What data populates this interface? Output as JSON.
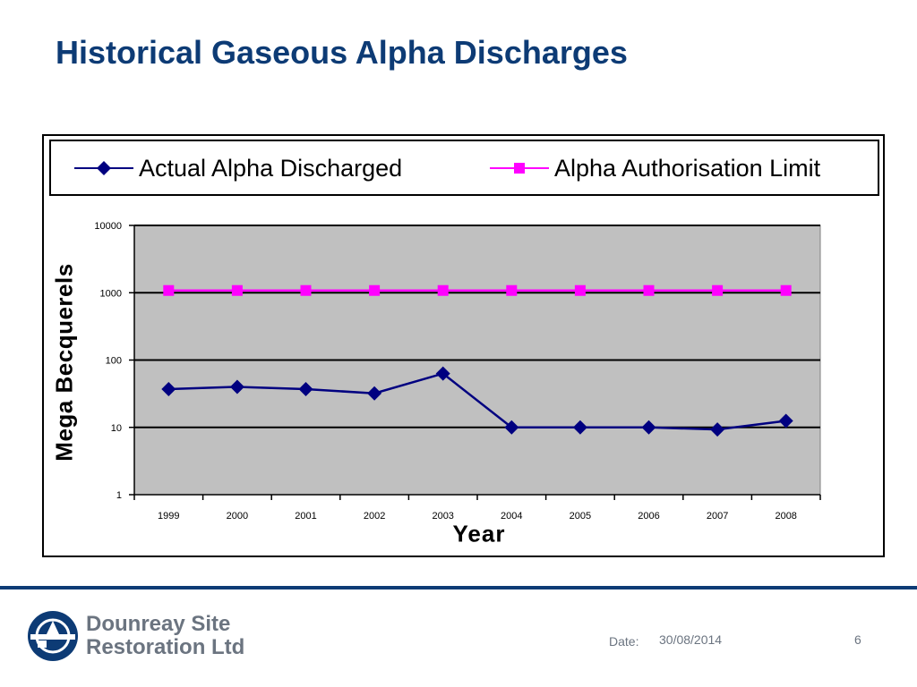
{
  "slide": {
    "title": "Historical Gaseous Alpha Discharges"
  },
  "chart_data": {
    "type": "line",
    "title": "",
    "xlabel": "Year",
    "ylabel": "Mega Becquerels",
    "y_scale": "log",
    "ylim": [
      1,
      10000
    ],
    "y_ticks": [
      1,
      10,
      100,
      1000,
      10000
    ],
    "y_tick_labels": [
      "1",
      "10",
      "100",
      "1000",
      "10000"
    ],
    "categories": [
      "1999",
      "2000",
      "2001",
      "2002",
      "2003",
      "2004",
      "2005",
      "2006",
      "2007",
      "2008"
    ],
    "grid": true,
    "plot_background": "#c0c0c0",
    "legend_position": "top",
    "series": [
      {
        "name": "Actual Alpha Discharged",
        "color": "#000080",
        "marker": "diamond",
        "values": [
          37,
          40,
          37,
          32,
          63,
          10,
          10,
          10,
          9.3,
          12.5
        ]
      },
      {
        "name": "Alpha Authorisation Limit",
        "color": "#ff00ff",
        "marker": "square",
        "values": [
          1080,
          1080,
          1080,
          1080,
          1080,
          1080,
          1080,
          1080,
          1080,
          1080
        ]
      }
    ]
  },
  "footer": {
    "logo_line1": "Dounreay Site",
    "logo_line2": "Restoration Ltd",
    "date_label": "Date:",
    "date_value": "30/08/2014",
    "page_number": "6",
    "accent_color": "#0d3b75"
  }
}
